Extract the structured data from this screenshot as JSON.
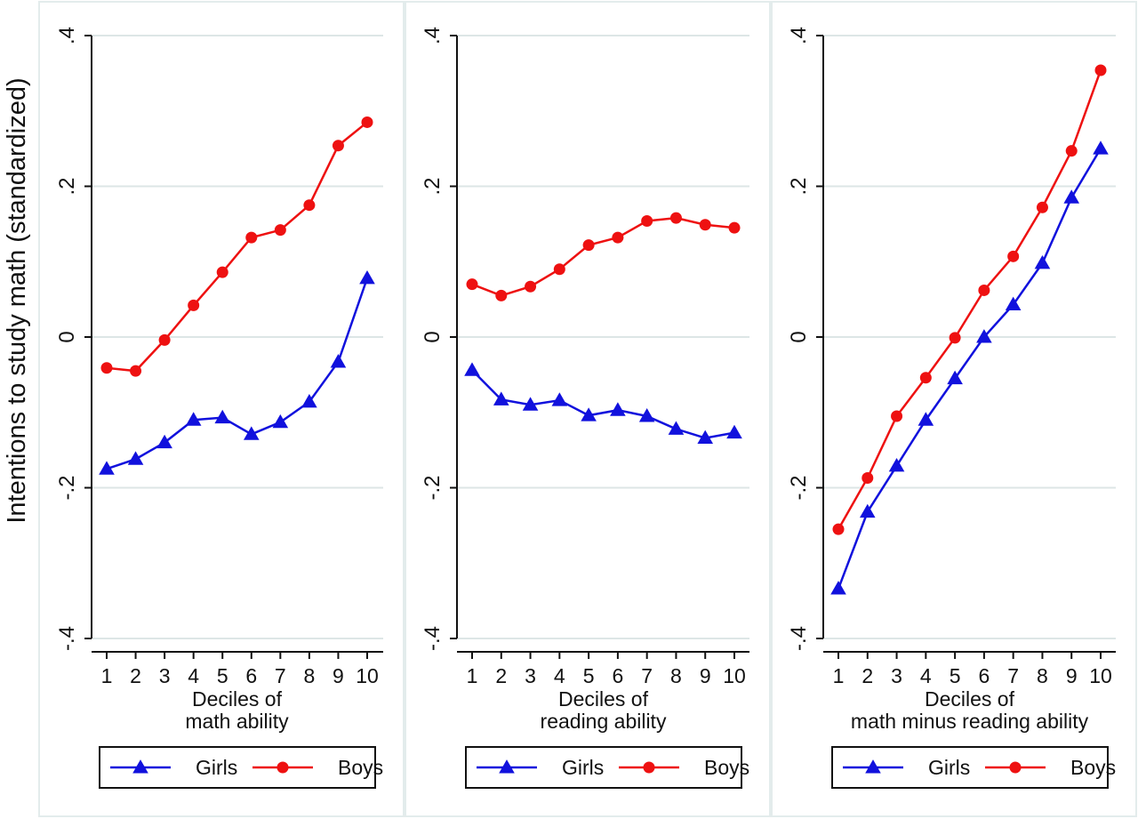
{
  "figure": {
    "ylabel": "Intentions to study math (standardized)"
  },
  "colors": {
    "girls": "#1111dd",
    "boys": "#ee1111",
    "grid": "#dde6e6",
    "axis": "#111111",
    "panel_border": "#e3ecec"
  },
  "chart_data": [
    {
      "type": "line",
      "xlabel_line1": "Deciles of",
      "xlabel_line2": "math ability",
      "ylabel": "Intentions to study math (standardized)",
      "x": [
        1,
        2,
        3,
        4,
        5,
        6,
        7,
        8,
        9,
        10
      ],
      "xticks": [
        "1",
        "2",
        "3",
        "4",
        "5",
        "6",
        "7",
        "8",
        "9",
        "10"
      ],
      "yticks": [
        {
          "value": -0.4,
          "label": "-.4"
        },
        {
          "value": -0.2,
          "label": "-.2"
        },
        {
          "value": 0,
          "label": "0"
        },
        {
          "value": 0.2,
          "label": ".2"
        },
        {
          "value": 0.4,
          "label": ".4"
        }
      ],
      "ylim": [
        -0.4,
        0.4
      ],
      "grid": true,
      "legend_position": "bottom",
      "series": [
        {
          "name": "Girls",
          "marker": "triangle",
          "values": [
            -0.175,
            -0.162,
            -0.14,
            -0.11,
            -0.107,
            -0.129,
            -0.113,
            -0.086,
            -0.033,
            0.078
          ]
        },
        {
          "name": "Boys",
          "marker": "circle",
          "values": [
            -0.041,
            -0.045,
            -0.004,
            0.042,
            0.086,
            0.132,
            0.142,
            0.175,
            0.254,
            0.285
          ]
        }
      ]
    },
    {
      "type": "line",
      "xlabel_line1": "Deciles of",
      "xlabel_line2": "reading ability",
      "x": [
        1,
        2,
        3,
        4,
        5,
        6,
        7,
        8,
        9,
        10
      ],
      "xticks": [
        "1",
        "2",
        "3",
        "4",
        "5",
        "6",
        "7",
        "8",
        "9",
        "10"
      ],
      "yticks": [
        {
          "value": -0.4,
          "label": "-.4"
        },
        {
          "value": -0.2,
          "label": "-.2"
        },
        {
          "value": 0,
          "label": "0"
        },
        {
          "value": 0.2,
          "label": ".2"
        },
        {
          "value": 0.4,
          "label": ".4"
        }
      ],
      "ylim": [
        -0.4,
        0.4
      ],
      "grid": true,
      "legend_position": "bottom",
      "series": [
        {
          "name": "Girls",
          "marker": "triangle",
          "values": [
            -0.044,
            -0.083,
            -0.09,
            -0.084,
            -0.104,
            -0.097,
            -0.105,
            -0.122,
            -0.134,
            -0.127
          ]
        },
        {
          "name": "Boys",
          "marker": "circle",
          "values": [
            0.07,
            0.055,
            0.067,
            0.09,
            0.122,
            0.132,
            0.154,
            0.158,
            0.149,
            0.145
          ]
        }
      ]
    },
    {
      "type": "line",
      "xlabel_line1": "Deciles of",
      "xlabel_line2": "math minus reading ability",
      "x": [
        1,
        2,
        3,
        4,
        5,
        6,
        7,
        8,
        9,
        10
      ],
      "xticks": [
        "1",
        "2",
        "3",
        "4",
        "5",
        "6",
        "7",
        "8",
        "9",
        "10"
      ],
      "yticks": [
        {
          "value": -0.4,
          "label": "-.4"
        },
        {
          "value": -0.2,
          "label": "-.2"
        },
        {
          "value": 0,
          "label": "0"
        },
        {
          "value": 0.2,
          "label": ".2"
        },
        {
          "value": 0.4,
          "label": ".4"
        }
      ],
      "ylim": [
        -0.4,
        0.4
      ],
      "grid": true,
      "legend_position": "bottom",
      "series": [
        {
          "name": "Girls",
          "marker": "triangle",
          "values": [
            -0.334,
            -0.232,
            -0.171,
            -0.11,
            -0.055,
            0.0,
            0.043,
            0.098,
            0.185,
            0.25
          ]
        },
        {
          "name": "Boys",
          "marker": "circle",
          "values": [
            -0.255,
            -0.187,
            -0.105,
            -0.054,
            -0.001,
            0.062,
            0.107,
            0.172,
            0.247,
            0.354
          ]
        }
      ]
    }
  ]
}
